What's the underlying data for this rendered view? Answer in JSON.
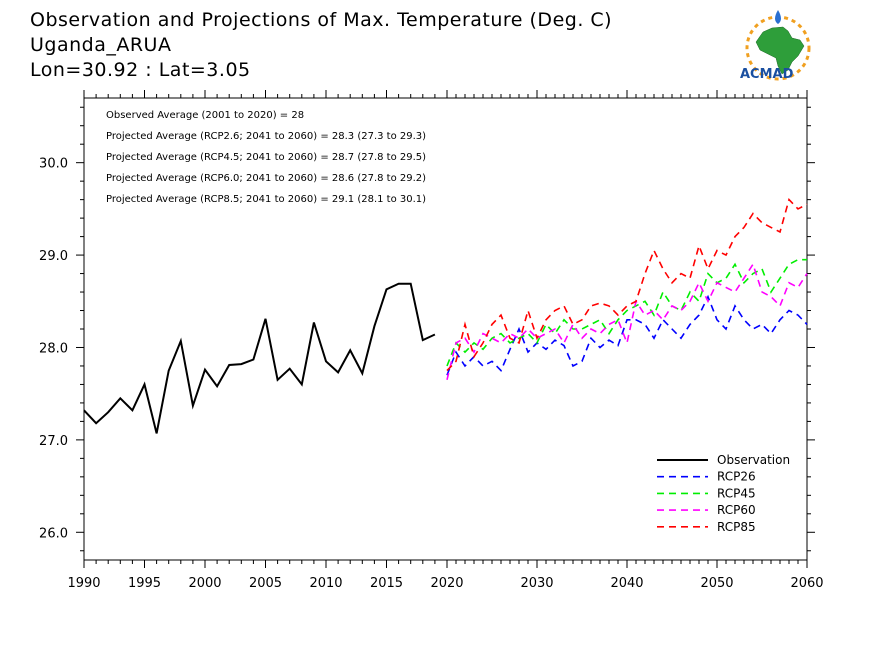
{
  "header": {
    "title": "Observation and Projections of Max. Temperature (Deg. C)",
    "location": "Uganda_ARUA",
    "coords": "Lon=30.92 : Lat=3.05"
  },
  "logo": {
    "text": "ACMAD"
  },
  "notes": [
    "Observed Average (2001 to 2020) = 28",
    "Projected Average (RCP2.6; 2041 to 2060) = 28.3 (27.3 to 29.3)",
    "Projected Average (RCP4.5; 2041 to 2060) = 28.7 (27.8 to 29.5)",
    "Projected Average (RCP6.0; 2041 to 2060) = 28.6 (27.8 to 29.2)",
    "Projected Average (RCP8.5; 2041 to 2060) = 29.1 (28.1 to 30.1)"
  ],
  "chart_data": {
    "type": "line",
    "title": "Observation and Projections of Max. Temperature (Deg. C)",
    "xlim": [
      1990,
      2060
    ],
    "ylim": [
      25.7,
      30.7
    ],
    "grid": false,
    "legend_position": "bottom-right",
    "x_ticks_left": [
      "1990",
      "1995",
      "2000",
      "2005",
      "2010",
      "2015",
      "2020"
    ],
    "x_ticks_right": [
      "2030",
      "2040",
      "2050",
      "2060"
    ],
    "y_ticks": [
      "26.0",
      "27.0",
      "28.0",
      "29.0",
      "30.0"
    ],
    "series": [
      {
        "name": "Observation",
        "color": "#000000",
        "style": "solid",
        "x": [
          1990,
          1991,
          1992,
          1993,
          1994,
          1995,
          1996,
          1997,
          1998,
          1999,
          2000,
          2001,
          2002,
          2003,
          2004,
          2005,
          2006,
          2007,
          2008,
          2009,
          2010,
          2011,
          2012,
          2013,
          2014,
          2015,
          2016,
          2017,
          2018,
          2019
        ],
        "y": [
          27.32,
          27.18,
          27.3,
          27.45,
          27.32,
          27.6,
          27.07,
          27.75,
          28.07,
          27.37,
          27.76,
          27.58,
          27.81,
          27.82,
          27.87,
          28.31,
          27.65,
          27.77,
          27.6,
          28.27,
          27.85,
          27.73,
          27.97,
          27.72,
          28.23,
          28.63,
          28.69,
          28.69,
          28.08,
          28.14
        ]
      },
      {
        "name": "RCP26",
        "color": "#0000ff",
        "style": "dashed",
        "x": [
          2020,
          2021,
          2022,
          2023,
          2024,
          2025,
          2026,
          2027,
          2028,
          2029,
          2030,
          2031,
          2032,
          2033,
          2034,
          2035,
          2036,
          2037,
          2038,
          2039,
          2040,
          2041,
          2042,
          2043,
          2044,
          2045,
          2046,
          2047,
          2048,
          2049,
          2050,
          2051,
          2052,
          2053,
          2054,
          2055,
          2056,
          2057,
          2058,
          2059,
          2060
        ],
        "y": [
          27.7,
          27.95,
          27.8,
          27.9,
          27.8,
          27.85,
          27.75,
          27.98,
          28.2,
          27.95,
          28.05,
          27.98,
          28.08,
          28.02,
          27.8,
          27.85,
          28.1,
          28.0,
          28.08,
          28.02,
          28.3,
          28.3,
          28.25,
          28.1,
          28.3,
          28.2,
          28.1,
          28.25,
          28.35,
          28.55,
          28.3,
          28.2,
          28.45,
          28.3,
          28.2,
          28.25,
          28.15,
          28.3,
          28.4,
          28.35,
          28.25
        ]
      },
      {
        "name": "RCP45",
        "color": "#00ee00",
        "style": "dashed",
        "x": [
          2020,
          2021,
          2022,
          2023,
          2024,
          2025,
          2026,
          2027,
          2028,
          2029,
          2030,
          2031,
          2032,
          2033,
          2034,
          2035,
          2036,
          2037,
          2038,
          2039,
          2040,
          2041,
          2042,
          2043,
          2044,
          2045,
          2046,
          2047,
          2048,
          2049,
          2050,
          2051,
          2052,
          2053,
          2054,
          2055,
          2056,
          2057,
          2058,
          2059,
          2060
        ],
        "y": [
          27.8,
          28.05,
          27.95,
          28.05,
          27.98,
          28.1,
          28.15,
          28.05,
          28.1,
          28.15,
          28.05,
          28.25,
          28.15,
          28.3,
          28.2,
          28.2,
          28.25,
          28.3,
          28.15,
          28.3,
          28.4,
          28.45,
          28.5,
          28.35,
          28.6,
          28.45,
          28.4,
          28.6,
          28.5,
          28.8,
          28.7,
          28.75,
          28.9,
          28.7,
          28.8,
          28.85,
          28.6,
          28.75,
          28.9,
          28.95,
          28.95
        ]
      },
      {
        "name": "RCP60",
        "color": "#ff00ff",
        "style": "dashed",
        "x": [
          2020,
          2021,
          2022,
          2023,
          2024,
          2025,
          2026,
          2027,
          2028,
          2029,
          2030,
          2031,
          2032,
          2033,
          2034,
          2035,
          2036,
          2037,
          2038,
          2039,
          2040,
          2041,
          2042,
          2043,
          2044,
          2045,
          2046,
          2047,
          2048,
          2049,
          2050,
          2051,
          2052,
          2053,
          2054,
          2055,
          2056,
          2057,
          2058,
          2059,
          2060
        ],
        "y": [
          27.65,
          28.05,
          28.1,
          27.95,
          28.15,
          28.1,
          28.05,
          28.15,
          28.1,
          28.2,
          28.1,
          28.15,
          28.2,
          28.05,
          28.25,
          28.1,
          28.2,
          28.15,
          28.25,
          28.3,
          28.05,
          28.5,
          28.35,
          28.4,
          28.3,
          28.45,
          28.4,
          28.5,
          28.7,
          28.5,
          28.7,
          28.65,
          28.6,
          28.75,
          28.9,
          28.6,
          28.55,
          28.45,
          28.7,
          28.65,
          28.8
        ]
      },
      {
        "name": "RCP85",
        "color": "#ff0000",
        "style": "dashed",
        "x": [
          2020,
          2021,
          2022,
          2023,
          2024,
          2025,
          2026,
          2027,
          2028,
          2029,
          2030,
          2031,
          2032,
          2033,
          2034,
          2035,
          2036,
          2037,
          2038,
          2039,
          2040,
          2041,
          2042,
          2043,
          2044,
          2045,
          2046,
          2047,
          2048,
          2049,
          2050,
          2051,
          2052,
          2053,
          2054,
          2055,
          2056,
          2057,
          2058,
          2059,
          2060
        ],
        "y": [
          27.75,
          27.85,
          28.25,
          27.9,
          28.05,
          28.25,
          28.35,
          28.1,
          28.05,
          28.4,
          28.1,
          28.3,
          28.4,
          28.45,
          28.25,
          28.3,
          28.45,
          28.48,
          28.45,
          28.35,
          28.45,
          28.5,
          28.8,
          29.05,
          28.85,
          28.7,
          28.8,
          28.75,
          29.1,
          28.85,
          29.05,
          29.0,
          29.2,
          29.3,
          29.45,
          29.35,
          29.3,
          29.25,
          29.6,
          29.5,
          29.55
        ]
      }
    ]
  }
}
